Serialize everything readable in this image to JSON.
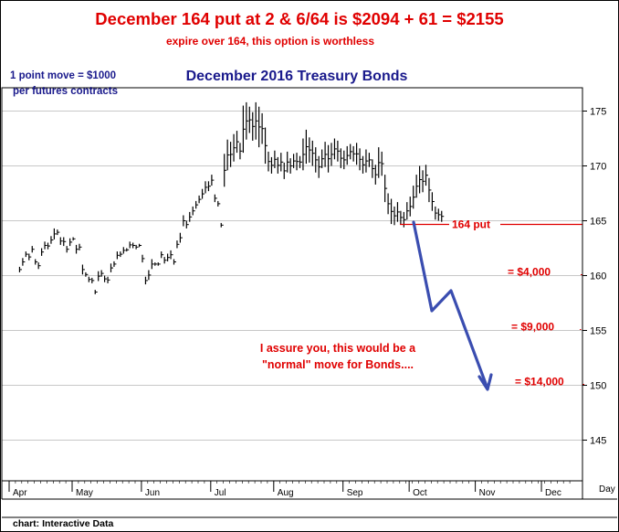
{
  "header": {
    "headline": "December 164 put at 2 & 6/64 is $2094 + 61 = $2155",
    "subline": "expire over 164, this option is worthless"
  },
  "notes": {
    "point_value_line1": "1 point move = $1000",
    "point_value_line2": "per futures contracts",
    "assurance_line1": "I assure you, this would be a",
    "assurance_line2": "\"normal\" move for Bonds....",
    "source": "chart: Interactive Data"
  },
  "colors": {
    "headline": "#e00000",
    "annotation": "#e00000",
    "title": "#1a1a8c",
    "projection": "#3a4db0",
    "price_bars": "#000000",
    "grid": "#c8c8c8"
  },
  "chart_data": {
    "type": "bar",
    "title": "December 2016 Treasury Bonds",
    "ylim": [
      140,
      178
    ],
    "y_ticks": [
      145,
      150,
      155,
      160,
      165,
      170,
      175
    ],
    "y_tick_labels": [
      "145",
      "150",
      "155",
      "160",
      "165",
      "170",
      "175"
    ],
    "x_months": [
      "Apr",
      "May",
      "Jun",
      "Jul",
      "Aug",
      "Sep",
      "Oct",
      "Nov",
      "Dec"
    ],
    "x_unit_label": "Day",
    "price_series": [
      [
        1,
        160.8,
        160.3
      ],
      [
        2,
        161.6,
        160.9
      ],
      [
        3,
        162.2,
        161.7
      ],
      [
        4,
        162.0,
        161.4
      ],
      [
        5,
        162.7,
        162.1
      ],
      [
        6,
        161.5,
        161.0
      ],
      [
        7,
        161.2,
        160.6
      ],
      [
        8,
        162.5,
        161.8
      ],
      [
        9,
        163.1,
        162.4
      ],
      [
        10,
        163.0,
        162.4
      ],
      [
        11,
        163.6,
        162.9
      ],
      [
        12,
        164.3,
        163.3
      ],
      [
        13,
        164.2,
        163.7
      ],
      [
        14,
        163.5,
        162.8
      ],
      [
        15,
        163.5,
        162.7
      ],
      [
        16,
        162.7,
        162.1
      ],
      [
        17,
        163.4,
        162.7
      ],
      [
        18,
        163.5,
        163.2
      ],
      [
        19,
        162.8,
        162.0
      ],
      [
        20,
        162.9,
        162.3
      ],
      [
        21,
        161.0,
        160.1
      ],
      [
        22,
        160.3,
        159.9
      ],
      [
        23,
        159.9,
        159.4
      ],
      [
        24,
        159.8,
        159.3
      ],
      [
        25,
        158.7,
        158.3
      ],
      [
        26,
        160.4,
        159.5
      ],
      [
        27,
        160.5,
        159.9
      ],
      [
        28,
        160.0,
        159.4
      ],
      [
        29,
        159.9,
        159.3
      ],
      [
        30,
        161.1,
        160.3
      ],
      [
        31,
        161.3,
        160.8
      ],
      [
        32,
        162.2,
        161.5
      ],
      [
        33,
        162.2,
        161.7
      ],
      [
        34,
        162.6,
        162.0
      ],
      [
        35,
        162.5,
        162.2
      ],
      [
        36,
        163.1,
        162.5
      ],
      [
        37,
        163.0,
        162.5
      ],
      [
        38,
        162.8,
        162.4
      ],
      [
        39,
        162.9,
        162.6
      ],
      [
        40,
        161.9,
        161.2
      ],
      [
        41,
        159.9,
        159.2
      ],
      [
        42,
        160.5,
        159.6
      ],
      [
        43,
        161.5,
        160.6
      ],
      [
        44,
        161.2,
        160.9
      ],
      [
        45,
        161.2,
        160.9
      ],
      [
        46,
        162.2,
        161.6
      ],
      [
        47,
        161.7,
        161.1
      ],
      [
        48,
        162.0,
        161.3
      ],
      [
        49,
        162.3,
        161.5
      ],
      [
        50,
        161.5,
        161.0
      ],
      [
        51,
        163.2,
        162.5
      ],
      [
        52,
        163.9,
        163.0
      ],
      [
        53,
        165.5,
        164.5
      ],
      [
        54,
        165.0,
        164.3
      ],
      [
        55,
        165.8,
        164.9
      ],
      [
        56,
        166.3,
        165.5
      ],
      [
        57,
        166.8,
        166.1
      ],
      [
        58,
        167.3,
        166.6
      ],
      [
        59,
        167.9,
        167.0
      ],
      [
        60,
        168.6,
        167.5
      ],
      [
        61,
        168.6,
        167.7
      ],
      [
        62,
        169.2,
        168.2
      ],
      [
        63,
        167.4,
        166.7
      ],
      [
        64,
        166.8,
        166.3
      ],
      [
        65,
        164.8,
        164.4
      ],
      [
        66,
        171.1,
        168.1
      ],
      [
        67,
        172.4,
        169.6
      ],
      [
        68,
        172.2,
        169.9
      ],
      [
        69,
        172.9,
        170.4
      ],
      [
        70,
        173.2,
        171.2
      ],
      [
        71,
        172.1,
        170.6
      ],
      [
        72,
        175.5,
        171.2
      ],
      [
        73,
        175.8,
        172.4
      ],
      [
        74,
        175.4,
        173.0
      ],
      [
        75,
        174.9,
        172.3
      ],
      [
        76,
        175.8,
        172.4
      ],
      [
        77,
        175.4,
        171.7
      ],
      [
        78,
        174.8,
        172.0
      ],
      [
        79,
        173.5,
        170.2
      ],
      [
        80,
        171.3,
        169.5
      ],
      [
        81,
        170.8,
        169.3
      ],
      [
        82,
        171.4,
        169.8
      ],
      [
        83,
        170.8,
        169.3
      ],
      [
        84,
        171.2,
        169.5
      ],
      [
        85,
        170.3,
        168.8
      ],
      [
        86,
        171.3,
        169.4
      ],
      [
        87,
        170.7,
        169.3
      ],
      [
        88,
        171.1,
        169.8
      ],
      [
        89,
        171.2,
        169.6
      ],
      [
        90,
        170.9,
        169.8
      ],
      [
        91,
        172.5,
        169.6
      ],
      [
        92,
        173.3,
        170.2
      ],
      [
        93,
        172.6,
        170.3
      ],
      [
        94,
        172.3,
        170.0
      ],
      [
        95,
        171.7,
        169.4
      ],
      [
        96,
        170.9,
        168.9
      ],
      [
        97,
        171.5,
        169.8
      ],
      [
        98,
        172.2,
        169.9
      ],
      [
        99,
        171.9,
        169.4
      ],
      [
        100,
        172.1,
        170.0
      ],
      [
        101,
        172.5,
        170.6
      ],
      [
        102,
        172.3,
        170.4
      ],
      [
        103,
        171.6,
        169.8
      ],
      [
        104,
        171.4,
        169.7
      ],
      [
        105,
        171.8,
        170.1
      ],
      [
        106,
        172.0,
        170.6
      ],
      [
        107,
        171.8,
        170.4
      ],
      [
        108,
        172.1,
        170.1
      ],
      [
        109,
        171.6,
        169.6
      ],
      [
        110,
        170.9,
        169.3
      ],
      [
        111,
        171.5,
        169.4
      ],
      [
        112,
        171.2,
        169.9
      ],
      [
        113,
        170.6,
        168.9
      ],
      [
        114,
        170.1,
        168.3
      ],
      [
        115,
        171.7,
        168.9
      ],
      [
        116,
        171.3,
        169.1
      ],
      [
        117,
        169.2,
        166.7
      ],
      [
        118,
        167.5,
        165.6
      ],
      [
        119,
        167.0,
        164.7
      ],
      [
        120,
        166.3,
        164.6
      ],
      [
        121,
        166.7,
        164.9
      ],
      [
        122,
        165.9,
        164.7
      ],
      [
        123,
        165.8,
        164.4
      ],
      [
        124,
        166.7,
        165.1
      ],
      [
        125,
        167.2,
        165.4
      ],
      [
        126,
        168.2,
        166.1
      ],
      [
        127,
        169.2,
        167.1
      ],
      [
        128,
        170.0,
        167.5
      ],
      [
        129,
        169.6,
        167.6
      ],
      [
        130,
        170.1,
        168.2
      ],
      [
        131,
        168.9,
        166.7
      ],
      [
        132,
        167.6,
        165.9
      ],
      [
        133,
        166.3,
        165.1
      ],
      [
        134,
        166.1,
        165.0
      ],
      [
        135,
        165.9,
        164.9
      ]
    ],
    "projection_path": [
      [
        139,
        164.9
      ],
      [
        148,
        156.7
      ],
      [
        156,
        158.6
      ],
      [
        165,
        149.6
      ]
    ],
    "strike_line": {
      "value": 164,
      "x_from": 134,
      "x_to": 184,
      "label": "164 put"
    },
    "target_levels": [
      {
        "value": 160,
        "label": "= $4,000"
      },
      {
        "value": 155,
        "label": "= $9,000"
      },
      {
        "value": 150,
        "label": "= $14,000"
      }
    ]
  }
}
